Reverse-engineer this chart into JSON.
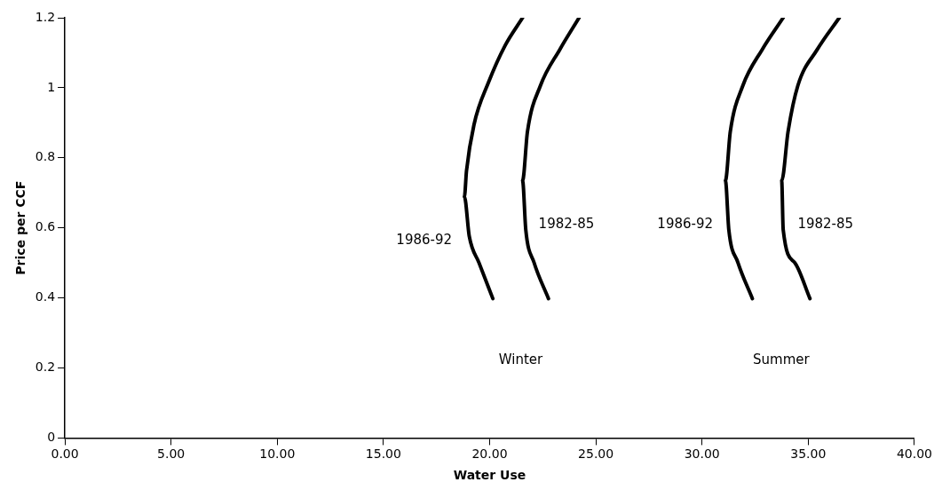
{
  "chart_data": {
    "type": "line",
    "xlabel": "Water Use",
    "ylabel": "Price per CCF",
    "xlim": [
      0,
      40
    ],
    "ylim": [
      0,
      1.2
    ],
    "xticks": [
      {
        "value": 0,
        "label": "0.00"
      },
      {
        "value": 5,
        "label": "5.00"
      },
      {
        "value": 10,
        "label": "10.00"
      },
      {
        "value": 15,
        "label": "15.00"
      },
      {
        "value": 20,
        "label": "20.00"
      },
      {
        "value": 25,
        "label": "25.00"
      },
      {
        "value": 30,
        "label": "30.00"
      },
      {
        "value": 35,
        "label": "35.00"
      },
      {
        "value": 40,
        "label": "40.00"
      }
    ],
    "yticks": [
      0,
      0.2,
      0.4,
      0.6,
      0.8,
      1,
      1.2
    ],
    "grid": false,
    "legend": false,
    "line_style": "solid",
    "marker": "none",
    "series": [
      {
        "name": "1986-92",
        "color": "#000000",
        "x": [
          21.55,
          20.72,
          19.95,
          19.26,
          18.91,
          18.81,
          19.04,
          19.5,
          20.15
        ],
        "values": [
          1.2,
          1.12,
          1.016,
          0.894,
          0.763,
          0.689,
          0.576,
          0.5,
          0.398
        ]
      },
      {
        "name": "1982-85",
        "color": "#000000",
        "x": [
          24.21,
          23.3,
          22.39,
          21.78,
          21.55,
          21.7,
          22.09,
          22.77
        ],
        "values": [
          1.2,
          1.109,
          1.006,
          0.875,
          0.735,
          0.595,
          0.501,
          0.398
        ]
      },
      {
        "name": "1986-92",
        "color": "#000000",
        "x": [
          33.82,
          32.83,
          31.92,
          31.33,
          31.1,
          31.26,
          31.69,
          32.37
        ],
        "values": [
          1.2,
          1.109,
          1.006,
          0.875,
          0.735,
          0.595,
          0.501,
          0.398
        ]
      },
      {
        "name": "1982-85",
        "color": "#000000",
        "x": [
          36.46,
          35.42,
          34.51,
          34.05,
          33.75,
          33.82,
          34.36,
          35.08
        ],
        "values": [
          1.2,
          1.109,
          1.006,
          0.875,
          0.735,
          0.595,
          0.501,
          0.398
        ]
      }
    ],
    "annotations": [
      "Winter",
      "Summer"
    ]
  }
}
